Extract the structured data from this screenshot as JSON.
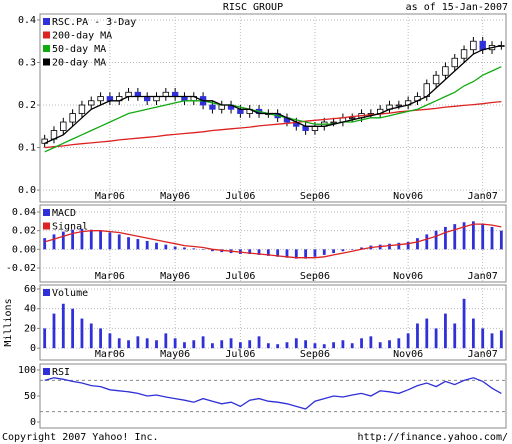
{
  "header": {
    "title": "RISC GROUP",
    "date": "as of 15-Jan-2007"
  },
  "footer": {
    "copyright": "Copyright 2007 Yahoo! Inc.",
    "url": "http://finance.yahoo.com/"
  },
  "chart_data": [
    {
      "type": "candlestick",
      "name": "RSC.PA - 3-Day",
      "color": "#3030d8",
      "categories": [
        null,
        null,
        null,
        null,
        null,
        null,
        null,
        "Mar06",
        null,
        null,
        null,
        null,
        null,
        null,
        "May06",
        null,
        null,
        null,
        null,
        null,
        null,
        "Jul06",
        null,
        null,
        null,
        null,
        null,
        null,
        null,
        "Sep06",
        null,
        null,
        null,
        null,
        null,
        null,
        null,
        null,
        null,
        "Nov06",
        null,
        null,
        null,
        null,
        null,
        null,
        null,
        "Jan07",
        null,
        null
      ],
      "open": [
        0.11,
        0.12,
        0.14,
        0.16,
        0.18,
        0.2,
        0.21,
        0.22,
        0.21,
        0.22,
        0.23,
        0.22,
        0.21,
        0.22,
        0.23,
        0.22,
        0.21,
        0.22,
        0.2,
        0.19,
        0.2,
        0.19,
        0.18,
        0.19,
        0.18,
        0.18,
        0.17,
        0.16,
        0.15,
        0.14,
        0.15,
        0.16,
        0.16,
        0.17,
        0.17,
        0.18,
        0.18,
        0.19,
        0.2,
        0.2,
        0.21,
        0.22,
        0.25,
        0.27,
        0.29,
        0.31,
        0.33,
        0.35,
        0.33,
        0.34
      ],
      "high": [
        0.13,
        0.15,
        0.17,
        0.19,
        0.21,
        0.22,
        0.23,
        0.23,
        0.23,
        0.24,
        0.24,
        0.23,
        0.23,
        0.24,
        0.24,
        0.23,
        0.23,
        0.23,
        0.21,
        0.21,
        0.21,
        0.2,
        0.2,
        0.2,
        0.19,
        0.19,
        0.18,
        0.17,
        0.16,
        0.16,
        0.17,
        0.17,
        0.18,
        0.18,
        0.19,
        0.19,
        0.2,
        0.21,
        0.21,
        0.22,
        0.23,
        0.26,
        0.28,
        0.3,
        0.32,
        0.34,
        0.36,
        0.36,
        0.35,
        0.35
      ],
      "low": [
        0.1,
        0.11,
        0.13,
        0.15,
        0.17,
        0.19,
        0.2,
        0.2,
        0.2,
        0.21,
        0.21,
        0.2,
        0.2,
        0.21,
        0.21,
        0.2,
        0.2,
        0.19,
        0.18,
        0.18,
        0.18,
        0.17,
        0.17,
        0.17,
        0.17,
        0.16,
        0.15,
        0.14,
        0.13,
        0.13,
        0.14,
        0.15,
        0.15,
        0.16,
        0.16,
        0.17,
        0.17,
        0.18,
        0.19,
        0.19,
        0.2,
        0.21,
        0.24,
        0.26,
        0.28,
        0.3,
        0.32,
        0.32,
        0.32,
        0.33
      ],
      "close": [
        0.12,
        0.14,
        0.16,
        0.18,
        0.2,
        0.21,
        0.22,
        0.21,
        0.22,
        0.23,
        0.22,
        0.21,
        0.22,
        0.23,
        0.22,
        0.21,
        0.22,
        0.2,
        0.19,
        0.2,
        0.19,
        0.18,
        0.19,
        0.18,
        0.18,
        0.17,
        0.16,
        0.15,
        0.14,
        0.15,
        0.16,
        0.16,
        0.17,
        0.17,
        0.18,
        0.18,
        0.19,
        0.2,
        0.2,
        0.21,
        0.22,
        0.25,
        0.27,
        0.29,
        0.31,
        0.33,
        0.35,
        0.33,
        0.34,
        0.34
      ],
      "series": [
        {
          "name": "200-day MA",
          "color": "#dd2222",
          "mark": "line",
          "values": [
            0.1,
            0.102,
            0.104,
            0.107,
            0.109,
            0.111,
            0.113,
            0.115,
            0.118,
            0.12,
            0.122,
            0.124,
            0.126,
            0.129,
            0.131,
            0.133,
            0.135,
            0.137,
            0.14,
            0.142,
            0.144,
            0.146,
            0.148,
            0.151,
            0.153,
            0.155,
            0.157,
            0.159,
            0.162,
            0.164,
            0.166,
            0.168,
            0.17,
            0.173,
            0.175,
            0.177,
            0.179,
            0.181,
            0.184,
            0.186,
            0.188,
            0.19,
            0.192,
            0.195,
            0.197,
            0.199,
            0.201,
            0.203,
            0.206,
            0.208
          ]
        },
        {
          "name": "50-day MA",
          "color": "#11aa11",
          "mark": "line",
          "values": [
            0.09,
            0.1,
            0.11,
            0.12,
            0.13,
            0.14,
            0.15,
            0.16,
            0.17,
            0.18,
            0.185,
            0.19,
            0.195,
            0.2,
            0.205,
            0.21,
            0.21,
            0.21,
            0.205,
            0.2,
            0.2,
            0.195,
            0.19,
            0.185,
            0.18,
            0.175,
            0.17,
            0.165,
            0.16,
            0.155,
            0.155,
            0.155,
            0.16,
            0.16,
            0.165,
            0.17,
            0.17,
            0.175,
            0.18,
            0.185,
            0.19,
            0.2,
            0.21,
            0.22,
            0.23,
            0.245,
            0.255,
            0.27,
            0.28,
            0.29
          ]
        },
        {
          "name": "20-day MA",
          "color": "#000000",
          "mark": "line",
          "values": [
            0.11,
            0.12,
            0.13,
            0.15,
            0.17,
            0.19,
            0.2,
            0.21,
            0.21,
            0.22,
            0.22,
            0.22,
            0.22,
            0.22,
            0.22,
            0.22,
            0.22,
            0.21,
            0.21,
            0.2,
            0.2,
            0.19,
            0.19,
            0.18,
            0.18,
            0.18,
            0.17,
            0.16,
            0.15,
            0.15,
            0.15,
            0.155,
            0.16,
            0.165,
            0.17,
            0.175,
            0.18,
            0.19,
            0.195,
            0.2,
            0.21,
            0.22,
            0.24,
            0.26,
            0.28,
            0.3,
            0.32,
            0.33,
            0.335,
            0.34
          ]
        }
      ],
      "ylim": [
        -0.028,
        0.414
      ],
      "yticks": [
        {
          "value": 0,
          "label": "0.0"
        },
        0.1,
        0.2,
        0.3,
        0.4
      ],
      "grid": true
    },
    {
      "type": "macd",
      "categories": [
        null,
        null,
        null,
        null,
        null,
        null,
        null,
        "Mar06",
        null,
        null,
        null,
        null,
        null,
        null,
        "May06",
        null,
        null,
        null,
        null,
        null,
        null,
        "Jul06",
        null,
        null,
        null,
        null,
        null,
        null,
        null,
        "Sep06",
        null,
        null,
        null,
        null,
        null,
        null,
        null,
        null,
        null,
        "Nov06",
        null,
        null,
        null,
        null,
        null,
        null,
        null,
        "Jan07",
        null,
        null
      ],
      "series": [
        {
          "name": "MACD",
          "color": "#3030d8",
          "mark": "bar",
          "values": [
            0.012,
            0.016,
            0.019,
            0.021,
            0.022,
            0.021,
            0.02,
            0.018,
            0.016,
            0.013,
            0.011,
            0.009,
            0.007,
            0.005,
            0.003,
            0.002,
            0.001,
            0.0,
            -0.002,
            -0.003,
            -0.004,
            -0.005,
            -0.005,
            -0.006,
            -0.007,
            -0.008,
            -0.009,
            -0.01,
            -0.01,
            -0.008,
            -0.006,
            -0.004,
            -0.002,
            0.0,
            0.002,
            0.004,
            0.005,
            0.006,
            0.007,
            0.008,
            0.012,
            0.016,
            0.02,
            0.024,
            0.027,
            0.029,
            0.03,
            0.027,
            0.024,
            0.02
          ]
        },
        {
          "name": "Signal",
          "color": "#dd2222",
          "mark": "line",
          "values": [
            0.008,
            0.011,
            0.014,
            0.017,
            0.019,
            0.02,
            0.02,
            0.019,
            0.018,
            0.016,
            0.014,
            0.012,
            0.01,
            0.008,
            0.006,
            0.004,
            0.003,
            0.002,
            0.0,
            -0.001,
            -0.002,
            -0.003,
            -0.004,
            -0.005,
            -0.006,
            -0.007,
            -0.008,
            -0.009,
            -0.009,
            -0.009,
            -0.008,
            -0.006,
            -0.004,
            -0.002,
            0.0,
            0.002,
            0.003,
            0.004,
            0.005,
            0.006,
            0.008,
            0.011,
            0.014,
            0.018,
            0.021,
            0.024,
            0.027,
            0.027,
            0.026,
            0.024
          ]
        }
      ],
      "ylim": [
        -0.035,
        0.0475
      ],
      "yticks": [
        -0.02,
        {
          "value": 0,
          "label": "0.00"
        },
        0.02,
        0.04
      ],
      "grid": true
    },
    {
      "type": "bar",
      "ylabel": "Millions",
      "categories": [
        null,
        null,
        null,
        null,
        null,
        null,
        null,
        "Mar06",
        null,
        null,
        null,
        null,
        null,
        null,
        "May06",
        null,
        null,
        null,
        null,
        null,
        null,
        "Jul06",
        null,
        null,
        null,
        null,
        null,
        null,
        null,
        "Sep06",
        null,
        null,
        null,
        null,
        null,
        null,
        null,
        null,
        null,
        "Nov06",
        null,
        null,
        null,
        null,
        null,
        null,
        null,
        "Jan07",
        null,
        null
      ],
      "series": [
        {
          "name": "Volume",
          "color": "#3030d8",
          "mark": "bar",
          "values": [
            20,
            35,
            45,
            40,
            30,
            25,
            20,
            15,
            10,
            8,
            12,
            10,
            8,
            15,
            10,
            6,
            8,
            12,
            5,
            8,
            10,
            6,
            8,
            12,
            5,
            4,
            6,
            10,
            8,
            5,
            4,
            6,
            8,
            5,
            10,
            12,
            6,
            8,
            10,
            15,
            25,
            30,
            20,
            35,
            25,
            50,
            30,
            20,
            15,
            18
          ]
        }
      ],
      "ylim": [
        -12,
        64
      ],
      "yticks": [
        0,
        20,
        40,
        60
      ],
      "grid": true
    },
    {
      "type": "line",
      "series": [
        {
          "name": "RSI",
          "color": "#3030d8",
          "mark": "line",
          "values": [
            80,
            85,
            82,
            78,
            75,
            70,
            68,
            62,
            60,
            58,
            55,
            50,
            52,
            48,
            45,
            42,
            38,
            45,
            40,
            35,
            38,
            30,
            42,
            45,
            40,
            38,
            35,
            30,
            25,
            40,
            45,
            50,
            48,
            52,
            55,
            50,
            60,
            58,
            55,
            62,
            70,
            75,
            68,
            78,
            72,
            80,
            85,
            78,
            65,
            55
          ]
        }
      ],
      "guides": [
        20,
        80
      ],
      "ylim": [
        -11.5,
        111.5
      ],
      "yticks": [
        0,
        50,
        100
      ],
      "grid": false
    }
  ]
}
